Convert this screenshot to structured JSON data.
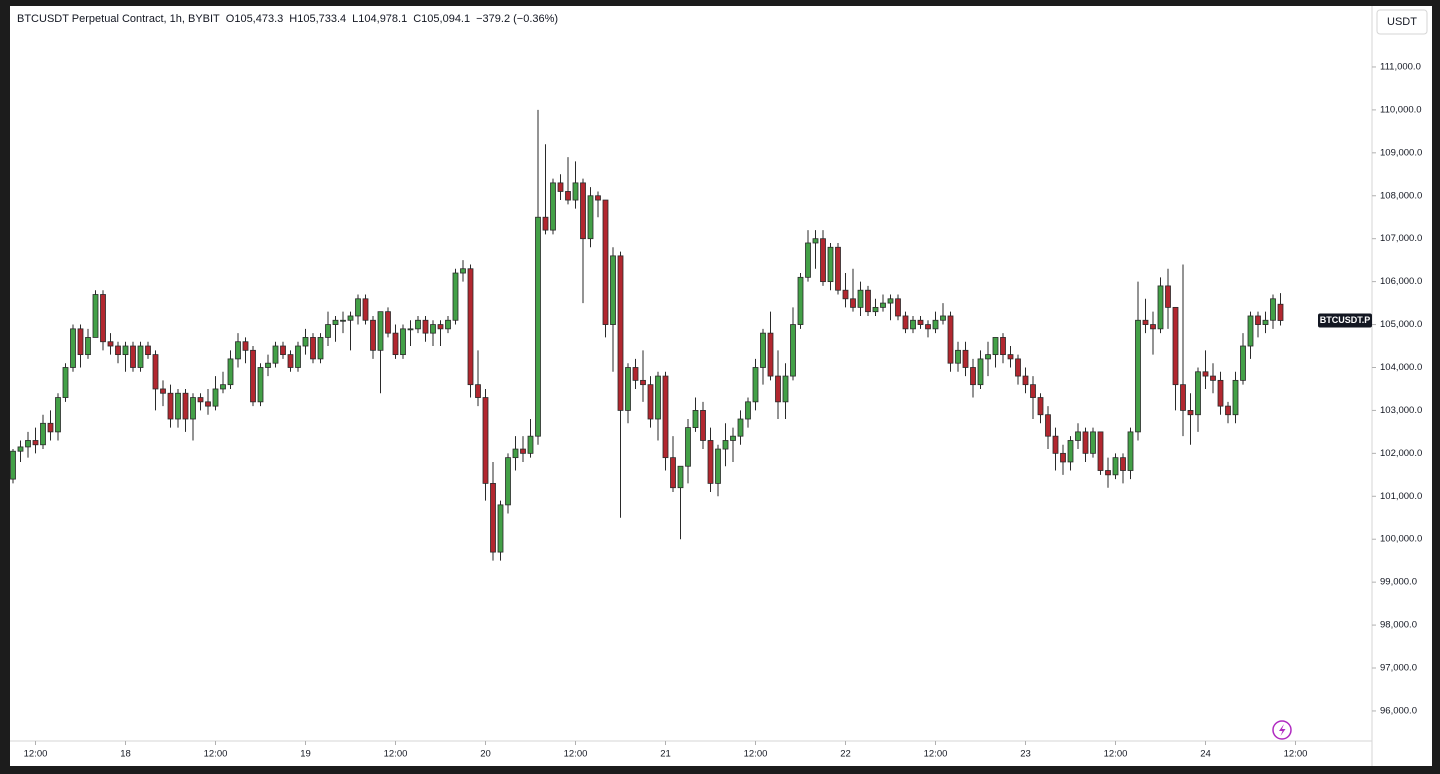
{
  "chart_data": {
    "type": "candlestick",
    "title": "BTCUSDT Perpetual Contract, 1h, BYBIT",
    "ohlc_legend": [
      {
        "label": "O",
        "value": "105,473.3"
      },
      {
        "label": "H",
        "value": "105,733.4"
      },
      {
        "label": "L",
        "value": "104,978.1"
      },
      {
        "label": "C",
        "value": "105,094.1"
      }
    ],
    "change": "−379.2 (−0.36%)",
    "currency": "USDT",
    "price_tag": "BTCUSDT.P",
    "up_color": "#43a047",
    "down_color": "#b2272f",
    "grid": false,
    "xlim": [
      -0.4,
      181.2
    ],
    "xticks": [
      {
        "value": 3,
        "label": "12:00"
      },
      {
        "value": 15,
        "label": "18"
      },
      {
        "value": 27,
        "label": "12:00"
      },
      {
        "value": 39,
        "label": "19"
      },
      {
        "value": 51,
        "label": "12:00"
      },
      {
        "value": 63,
        "label": "20"
      },
      {
        "value": 75,
        "label": "12:00"
      },
      {
        "value": 87,
        "label": "21"
      },
      {
        "value": 99,
        "label": "12:00"
      },
      {
        "value": 111,
        "label": "22"
      },
      {
        "value": 123,
        "label": "12:00"
      },
      {
        "value": 135,
        "label": "23"
      },
      {
        "value": 147,
        "label": "12:00"
      },
      {
        "value": 159,
        "label": "24"
      },
      {
        "value": 171,
        "label": "12:00"
      }
    ],
    "ylim": [
      95300,
      112420
    ],
    "yticks": [
      {
        "value": 96000,
        "label": "96,000.0"
      },
      {
        "value": 97000,
        "label": "97,000.0"
      },
      {
        "value": 98000,
        "label": "98,000.0"
      },
      {
        "value": 99000,
        "label": "99,000.0"
      },
      {
        "value": 100000,
        "label": "100,000.0"
      },
      {
        "value": 101000,
        "label": "101,000.0"
      },
      {
        "value": 102000,
        "label": "102,000.0"
      },
      {
        "value": 103000,
        "label": "103,000.0"
      },
      {
        "value": 104000,
        "label": "104,000.0"
      },
      {
        "value": 105000,
        "label": "105,000.0"
      },
      {
        "value": 106000,
        "label": "106,000.0"
      },
      {
        "value": 107000,
        "label": "107,000.0"
      },
      {
        "value": 108000,
        "label": "108,000.0"
      },
      {
        "value": 109000,
        "label": "109,000.0"
      },
      {
        "value": 110000,
        "label": "110,000.0"
      },
      {
        "value": 111000,
        "label": "111,000.0"
      }
    ],
    "x": [
      0,
      1,
      2,
      3,
      4,
      5,
      6,
      7,
      8,
      9,
      10,
      11,
      12,
      13,
      14,
      15,
      16,
      17,
      18,
      19,
      20,
      21,
      22,
      23,
      24,
      25,
      26,
      27,
      28,
      29,
      30,
      31,
      32,
      33,
      34,
      35,
      36,
      37,
      38,
      39,
      40,
      41,
      42,
      43,
      44,
      45,
      46,
      47,
      48,
      49,
      50,
      51,
      52,
      53,
      54,
      55,
      56,
      57,
      58,
      59,
      60,
      61,
      62,
      63,
      64,
      65,
      66,
      67,
      68,
      69,
      70,
      71,
      72,
      73,
      74,
      75,
      76,
      77,
      78,
      79,
      80,
      81,
      82,
      83,
      84,
      85,
      86,
      87,
      88,
      89,
      90,
      91,
      92,
      93,
      94,
      95,
      96,
      97,
      98,
      99,
      100,
      101,
      102,
      103,
      104,
      105,
      106,
      107,
      108,
      109,
      110,
      111,
      112,
      113,
      114,
      115,
      116,
      117,
      118,
      119,
      120,
      121,
      122,
      123,
      124,
      125,
      126,
      127,
      128,
      129,
      130,
      131,
      132,
      133,
      134,
      135,
      136,
      137,
      138,
      139,
      140,
      141,
      142,
      143,
      144,
      145,
      146,
      147,
      148,
      149,
      150,
      151,
      152,
      153,
      154,
      155,
      156,
      157,
      158,
      159,
      160,
      161,
      162,
      163,
      164,
      165,
      166,
      167,
      168,
      169
    ],
    "candles": [
      [
        101400,
        102100,
        101300,
        102050
      ],
      [
        102050,
        102300,
        101800,
        102150
      ],
      [
        102150,
        102500,
        101900,
        102300
      ],
      [
        102300,
        102600,
        102000,
        102200
      ],
      [
        102200,
        102900,
        102100,
        102700
      ],
      [
        102700,
        103000,
        102300,
        102500
      ],
      [
        102500,
        103400,
        102300,
        103300
      ],
      [
        103300,
        104100,
        103200,
        104000
      ],
      [
        104000,
        105000,
        103900,
        104900
      ],
      [
        104900,
        105000,
        104000,
        104300
      ],
      [
        104300,
        104900,
        104200,
        104700
      ],
      [
        104700,
        105800,
        104700,
        105700
      ],
      [
        105700,
        105800,
        104400,
        104600
      ],
      [
        104600,
        104800,
        104300,
        104500
      ],
      [
        104500,
        104600,
        104100,
        104300
      ],
      [
        104300,
        104600,
        103900,
        104500
      ],
      [
        104500,
        104600,
        103900,
        104000
      ],
      [
        104000,
        104600,
        103900,
        104500
      ],
      [
        104500,
        104600,
        104200,
        104300
      ],
      [
        104300,
        104400,
        103000,
        103500
      ],
      [
        103500,
        103700,
        103100,
        103400
      ],
      [
        103400,
        103600,
        102600,
        102800
      ],
      [
        102800,
        103500,
        102600,
        103400
      ],
      [
        103400,
        103500,
        102500,
        102800
      ],
      [
        102800,
        103400,
        102300,
        103300
      ],
      [
        103300,
        103400,
        103000,
        103200
      ],
      [
        103200,
        103500,
        102900,
        103100
      ],
      [
        103100,
        103800,
        103000,
        103500
      ],
      [
        103500,
        103900,
        103400,
        103600
      ],
      [
        103600,
        104400,
        103500,
        104200
      ],
      [
        104200,
        104800,
        104000,
        104600
      ],
      [
        104600,
        104700,
        104100,
        104400
      ],
      [
        104400,
        104500,
        103100,
        103200
      ],
      [
        103200,
        104100,
        103100,
        104000
      ],
      [
        104000,
        104300,
        103800,
        104100
      ],
      [
        104100,
        104600,
        104000,
        104500
      ],
      [
        104500,
        104600,
        104200,
        104300
      ],
      [
        104300,
        104400,
        103900,
        104000
      ],
      [
        104000,
        104600,
        103900,
        104500
      ],
      [
        104500,
        104900,
        104300,
        104700
      ],
      [
        104700,
        104800,
        104100,
        104200
      ],
      [
        104200,
        104800,
        104100,
        104700
      ],
      [
        104700,
        105300,
        104500,
        105000
      ],
      [
        105000,
        105200,
        104600,
        105100
      ],
      [
        105100,
        105300,
        104800,
        105100
      ],
      [
        105100,
        105300,
        104400,
        105200
      ],
      [
        105200,
        105700,
        105000,
        105600
      ],
      [
        105600,
        105700,
        105000,
        105100
      ],
      [
        105100,
        105200,
        104200,
        104400
      ],
      [
        104400,
        105300,
        103400,
        105300
      ],
      [
        105300,
        105400,
        104700,
        104800
      ],
      [
        104800,
        105000,
        104200,
        104300
      ],
      [
        104300,
        105000,
        104200,
        104900
      ],
      [
        104900,
        105100,
        104500,
        104900
      ],
      [
        104900,
        105200,
        104800,
        105100
      ],
      [
        105100,
        105200,
        104600,
        104800
      ],
      [
        104800,
        105100,
        104500,
        105000
      ],
      [
        105000,
        105100,
        104500,
        104900
      ],
      [
        104900,
        105200,
        104800,
        105100
      ],
      [
        105100,
        106300,
        105000,
        106200
      ],
      [
        106200,
        106500,
        106000,
        106300
      ],
      [
        106300,
        106400,
        103300,
        103600
      ],
      [
        103600,
        104400,
        103100,
        103300
      ],
      [
        103300,
        103500,
        100900,
        101300
      ],
      [
        101300,
        101800,
        99500,
        99700
      ],
      [
        99700,
        100900,
        99500,
        100800
      ],
      [
        100800,
        102000,
        100600,
        101900
      ],
      [
        101900,
        102400,
        101600,
        102100
      ],
      [
        102100,
        102400,
        101800,
        102000
      ],
      [
        102000,
        102800,
        101900,
        102400
      ],
      [
        102400,
        110000,
        102200,
        107500
      ],
      [
        107500,
        109200,
        107100,
        107200
      ],
      [
        107200,
        108400,
        107100,
        108300
      ],
      [
        108300,
        108500,
        107900,
        108100
      ],
      [
        108100,
        108900,
        107800,
        107900
      ],
      [
        107900,
        108800,
        107700,
        108300
      ],
      [
        108300,
        108400,
        105500,
        107000
      ],
      [
        107000,
        108200,
        106800,
        108000
      ],
      [
        108000,
        108100,
        107500,
        107900
      ],
      [
        107900,
        107900,
        104700,
        105000
      ],
      [
        105000,
        106800,
        103900,
        106600
      ],
      [
        106600,
        106700,
        100500,
        103000
      ],
      [
        103000,
        104100,
        102700,
        104000
      ],
      [
        104000,
        104200,
        103500,
        103700
      ],
      [
        103700,
        104400,
        103200,
        103600
      ],
      [
        103600,
        103800,
        102600,
        102800
      ],
      [
        102800,
        103900,
        102300,
        103800
      ],
      [
        103800,
        103900,
        101600,
        101900
      ],
      [
        101900,
        102400,
        101100,
        101200
      ],
      [
        101200,
        101700,
        100000,
        101700
      ],
      [
        101700,
        102800,
        101300,
        102600
      ],
      [
        102600,
        103300,
        102500,
        103000
      ],
      [
        103000,
        103200,
        102100,
        102300
      ],
      [
        102300,
        102600,
        101100,
        101300
      ],
      [
        101300,
        102200,
        101000,
        102100
      ],
      [
        102100,
        102700,
        101700,
        102300
      ],
      [
        102300,
        102600,
        101800,
        102400
      ],
      [
        102400,
        103000,
        102200,
        102800
      ],
      [
        102800,
        103300,
        102600,
        103200
      ],
      [
        103200,
        104200,
        103000,
        104000
      ],
      [
        104000,
        104900,
        103600,
        104800
      ],
      [
        104800,
        105300,
        103700,
        103800
      ],
      [
        103800,
        104400,
        102800,
        103200
      ],
      [
        103200,
        104100,
        102800,
        103800
      ],
      [
        103800,
        105400,
        103700,
        105000
      ],
      [
        105000,
        106200,
        104900,
        106100
      ],
      [
        106100,
        107200,
        106000,
        106900
      ],
      [
        106900,
        107200,
        106300,
        107000
      ],
      [
        107000,
        107200,
        105900,
        106000
      ],
      [
        106000,
        106900,
        105800,
        106800
      ],
      [
        106800,
        106900,
        105700,
        105800
      ],
      [
        105800,
        106200,
        105400,
        105600
      ],
      [
        105600,
        106300,
        105300,
        105400
      ],
      [
        105400,
        106000,
        105200,
        105800
      ],
      [
        105800,
        105900,
        105200,
        105300
      ],
      [
        105300,
        105600,
        105200,
        105400
      ],
      [
        105400,
        105700,
        105300,
        105500
      ],
      [
        105500,
        105700,
        105100,
        105600
      ],
      [
        105600,
        105700,
        105100,
        105200
      ],
      [
        105200,
        105300,
        104800,
        104900
      ],
      [
        104900,
        105200,
        104800,
        105100
      ],
      [
        105100,
        105200,
        104900,
        105000
      ],
      [
        105000,
        105100,
        104700,
        104900
      ],
      [
        104900,
        105300,
        104800,
        105100
      ],
      [
        105100,
        105500,
        105000,
        105200
      ],
      [
        105200,
        105300,
        103900,
        104100
      ],
      [
        104100,
        104600,
        103900,
        104400
      ],
      [
        104400,
        104600,
        103800,
        104000
      ],
      [
        104000,
        104200,
        103300,
        103600
      ],
      [
        103600,
        104400,
        103500,
        104200
      ],
      [
        104200,
        104600,
        103800,
        104300
      ],
      [
        104300,
        104700,
        104000,
        104700
      ],
      [
        104700,
        104800,
        104100,
        104300
      ],
      [
        104300,
        104500,
        104000,
        104200
      ],
      [
        104200,
        104300,
        103600,
        103800
      ],
      [
        103800,
        104000,
        103400,
        103600
      ],
      [
        103600,
        103800,
        102800,
        103300
      ],
      [
        103300,
        103400,
        102700,
        102900
      ],
      [
        102900,
        103100,
        102100,
        102400
      ],
      [
        102400,
        102600,
        101600,
        102000
      ],
      [
        102000,
        102200,
        101500,
        101800
      ],
      [
        101800,
        102400,
        101600,
        102300
      ],
      [
        102300,
        102700,
        102100,
        102500
      ],
      [
        102500,
        102600,
        101800,
        102000
      ],
      [
        102000,
        102600,
        101900,
        102500
      ],
      [
        102500,
        102500,
        101500,
        101600
      ],
      [
        101600,
        101900,
        101200,
        101500
      ],
      [
        101500,
        102000,
        101400,
        101900
      ],
      [
        101900,
        102000,
        101300,
        101600
      ],
      [
        101600,
        102600,
        101400,
        102500
      ],
      [
        102500,
        106000,
        102300,
        105100
      ],
      [
        105100,
        105600,
        104800,
        105000
      ],
      [
        105000,
        105300,
        104300,
        104900
      ],
      [
        104900,
        106100,
        104800,
        105900
      ],
      [
        105900,
        106300,
        104900,
        105400
      ],
      [
        105400,
        105400,
        103000,
        103600
      ],
      [
        103600,
        106400,
        102400,
        103000
      ],
      [
        103000,
        103400,
        102200,
        102900
      ],
      [
        102900,
        104000,
        102500,
        103900
      ],
      [
        103900,
        104400,
        103500,
        103800
      ],
      [
        103800,
        104100,
        103400,
        103700
      ],
      [
        103700,
        103900,
        102900,
        103100
      ],
      [
        103100,
        103200,
        102700,
        102900
      ],
      [
        102900,
        103900,
        102700,
        103700
      ],
      [
        103700,
        104800,
        103600,
        104500
      ],
      [
        104500,
        105300,
        104200,
        105200
      ],
      [
        105200,
        105300,
        104700,
        105000
      ],
      [
        105000,
        105300,
        104800,
        105100
      ],
      [
        105100,
        105700,
        104900,
        105600
      ],
      [
        105473.3,
        105733.4,
        104978.1,
        105094.1
      ]
    ]
  }
}
